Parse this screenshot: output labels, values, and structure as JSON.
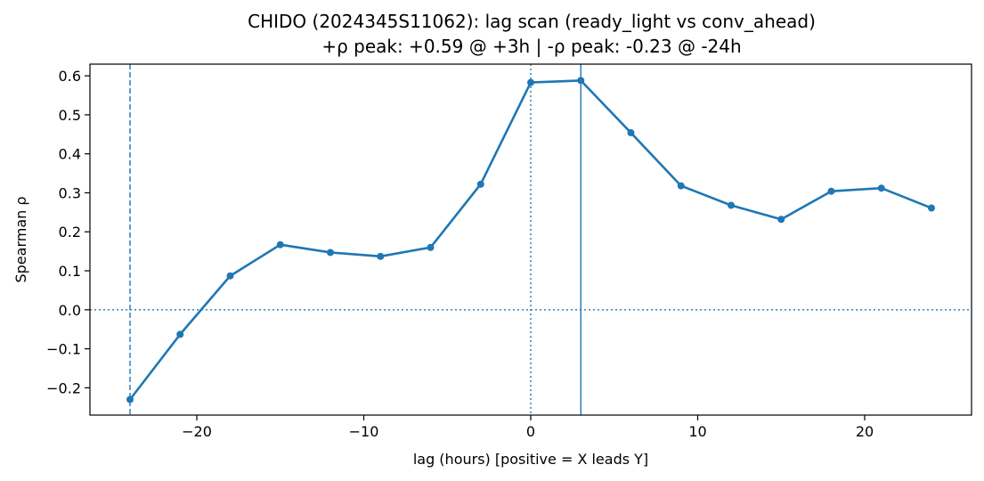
{
  "chart_data": {
    "type": "line",
    "title": "CHIDO (2024345S11062): lag scan (ready_light vs conv_ahead)",
    "subtitle": "+ρ peak: +0.59 @ +3h | -ρ peak: -0.23 @ -24h",
    "xlabel": "lag (hours) [positive = X leads Y]",
    "ylabel": "Spearman ρ",
    "xlim": [
      -26.4,
      26.4
    ],
    "ylim": [
      -0.27,
      0.63
    ],
    "x_ticks": [
      -20,
      -10,
      0,
      10,
      20
    ],
    "x_tick_labels": [
      "−20",
      "−10",
      "0",
      "10",
      "20"
    ],
    "y_ticks": [
      -0.2,
      -0.1,
      0.0,
      0.1,
      0.2,
      0.3,
      0.4,
      0.5,
      0.6
    ],
    "y_tick_labels": [
      "−0.2",
      "−0.1",
      "0.0",
      "0.1",
      "0.2",
      "0.3",
      "0.4",
      "0.5",
      "0.6"
    ],
    "grid": false,
    "color": "#1f77b4",
    "series": [
      {
        "x": [
          -24,
          -21,
          -18,
          -15,
          -12,
          -9,
          -6,
          -3,
          0,
          3,
          6,
          9,
          12,
          15,
          18,
          21,
          24
        ],
        "values": [
          -0.23,
          -0.063,
          0.087,
          0.167,
          0.147,
          0.137,
          0.16,
          0.322,
          0.583,
          0.588,
          0.454,
          0.318,
          0.268,
          0.232,
          0.304,
          0.312,
          0.261
        ]
      }
    ],
    "reference_lines": [
      {
        "orientation": "horizontal",
        "value": 0.0,
        "style": "dotted"
      },
      {
        "orientation": "vertical",
        "value": 0,
        "style": "dotted"
      },
      {
        "orientation": "vertical",
        "value": 3,
        "style": "solid"
      },
      {
        "orientation": "vertical",
        "value": -24,
        "style": "dashed"
      }
    ]
  }
}
